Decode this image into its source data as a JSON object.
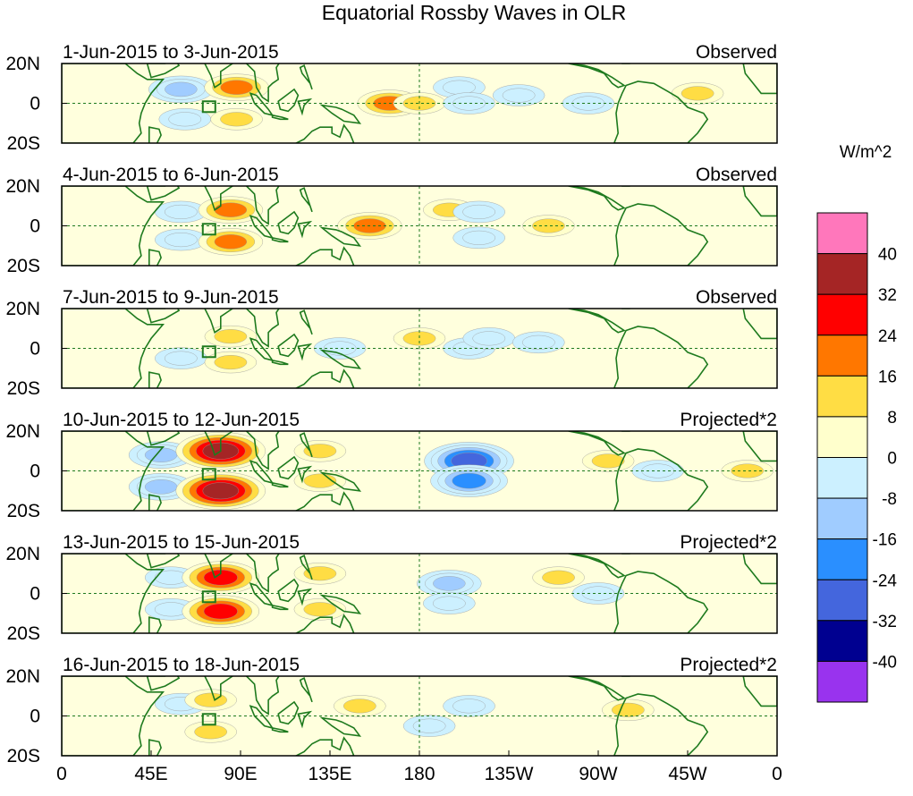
{
  "chart_data": {
    "type": "heatmap",
    "title": "Equatorial Rossby Waves in OLR",
    "colorbar": {
      "label": "W/m^2",
      "tick_labels": [
        "40",
        "32",
        "24",
        "16",
        "8",
        "0",
        "-8",
        "-16",
        "-24",
        "-32",
        "-40"
      ],
      "colors_top_to_bottom": [
        "#ff77bb",
        "#a52525",
        "#ff0000",
        "#ff7700",
        "#ffdd44",
        "#ffffcc",
        "#ccf0ff",
        "#a0ccff",
        "#2a8fff",
        "#4466dd",
        "#000090",
        "#9933ee"
      ]
    },
    "x_ticks": [
      "0",
      "45E",
      "90E",
      "135E",
      "180",
      "135W",
      "90W",
      "45W",
      "0"
    ],
    "x_range": [
      0,
      360
    ],
    "y_ticks": [
      "20N",
      "0",
      "20S"
    ],
    "y_range": [
      -20,
      20
    ],
    "panels": [
      {
        "period": "1-Jun-2015 to 3-Jun-2015",
        "label": "Observed",
        "features": [
          {
            "lon": 60,
            "lat": 7,
            "value": -18
          },
          {
            "lon": 62,
            "lat": -8,
            "value": -14
          },
          {
            "lon": 88,
            "lat": 8,
            "value": 20
          },
          {
            "lon": 88,
            "lat": -8,
            "value": 14
          },
          {
            "lon": 165,
            "lat": 0,
            "value": 20
          },
          {
            "lon": 180,
            "lat": 0,
            "value": 6
          },
          {
            "lon": 200,
            "lat": 8,
            "value": -6
          },
          {
            "lon": 205,
            "lat": 0,
            "value": -10
          },
          {
            "lon": 230,
            "lat": 4,
            "value": -8
          },
          {
            "lon": 265,
            "lat": 0,
            "value": -9
          },
          {
            "lon": 320,
            "lat": 5,
            "value": 8
          }
        ]
      },
      {
        "period": "4-Jun-2015 to 6-Jun-2015",
        "label": "Observed",
        "features": [
          {
            "lon": 60,
            "lat": 7,
            "value": -12
          },
          {
            "lon": 60,
            "lat": -7,
            "value": -12
          },
          {
            "lon": 85,
            "lat": 8,
            "value": 16
          },
          {
            "lon": 85,
            "lat": -8,
            "value": 17
          },
          {
            "lon": 155,
            "lat": 0,
            "value": 17
          },
          {
            "lon": 195,
            "lat": 8,
            "value": 8
          },
          {
            "lon": 210,
            "lat": 7,
            "value": -12
          },
          {
            "lon": 210,
            "lat": -6,
            "value": -12
          },
          {
            "lon": 245,
            "lat": 0,
            "value": 8
          }
        ]
      },
      {
        "period": "7-Jun-2015 to 9-Jun-2015",
        "label": "Observed",
        "features": [
          {
            "lon": 60,
            "lat": -5,
            "value": -10
          },
          {
            "lon": 85,
            "lat": 6,
            "value": 14
          },
          {
            "lon": 85,
            "lat": -7,
            "value": 13
          },
          {
            "lon": 140,
            "lat": 0,
            "value": -8
          },
          {
            "lon": 180,
            "lat": 5,
            "value": 6
          },
          {
            "lon": 205,
            "lat": 0,
            "value": -12
          },
          {
            "lon": 215,
            "lat": 5,
            "value": -10
          },
          {
            "lon": 240,
            "lat": 3,
            "value": -6
          }
        ]
      },
      {
        "period": "10-Jun-2015 to 12-Jun-2015",
        "label": "Projected*2",
        "features": [
          {
            "lon": 50,
            "lat": 8,
            "value": -22
          },
          {
            "lon": 50,
            "lat": -8,
            "value": -20
          },
          {
            "lon": 80,
            "lat": 10,
            "value": 35
          },
          {
            "lon": 80,
            "lat": -10,
            "value": 35
          },
          {
            "lon": 130,
            "lat": 10,
            "value": 8
          },
          {
            "lon": 130,
            "lat": -5,
            "value": 10
          },
          {
            "lon": 205,
            "lat": 5,
            "value": -36
          },
          {
            "lon": 205,
            "lat": -5,
            "value": -30
          },
          {
            "lon": 275,
            "lat": 5,
            "value": 10
          },
          {
            "lon": 300,
            "lat": 0,
            "value": -8
          },
          {
            "lon": 345,
            "lat": 0,
            "value": 8
          }
        ]
      },
      {
        "period": "13-Jun-2015 to 15-Jun-2015",
        "label": "Projected*2",
        "features": [
          {
            "lon": 55,
            "lat": 8,
            "value": -10
          },
          {
            "lon": 55,
            "lat": -8,
            "value": -10
          },
          {
            "lon": 80,
            "lat": 8,
            "value": 28
          },
          {
            "lon": 80,
            "lat": -9,
            "value": 28
          },
          {
            "lon": 130,
            "lat": 10,
            "value": 10
          },
          {
            "lon": 130,
            "lat": -8,
            "value": 12
          },
          {
            "lon": 195,
            "lat": 5,
            "value": -16
          },
          {
            "lon": 195,
            "lat": -5,
            "value": -14
          },
          {
            "lon": 250,
            "lat": 8,
            "value": 8
          },
          {
            "lon": 270,
            "lat": 0,
            "value": -8
          }
        ]
      },
      {
        "period": "16-Jun-2015 to 18-Jun-2015",
        "label": "Projected*2",
        "features": [
          {
            "lon": 60,
            "lat": 6,
            "value": -8
          },
          {
            "lon": 75,
            "lat": 8,
            "value": 12
          },
          {
            "lon": 75,
            "lat": -8,
            "value": 11
          },
          {
            "lon": 150,
            "lat": 5,
            "value": 8
          },
          {
            "lon": 185,
            "lat": -5,
            "value": -10
          },
          {
            "lon": 205,
            "lat": 5,
            "value": -8
          },
          {
            "lon": 285,
            "lat": 3,
            "value": 7
          }
        ]
      }
    ]
  }
}
